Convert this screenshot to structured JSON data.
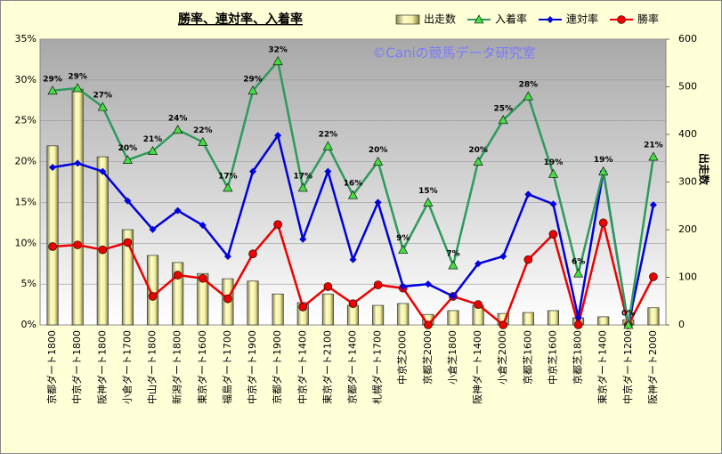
{
  "chart_data": {
    "type": "combo",
    "title": "勝率、連対率、入着率",
    "annotations": [
      "©Caniの競馬データ研究室"
    ],
    "y2label": "出走数",
    "categories": [
      "京都ダート1800",
      "中京ダート1800",
      "阪神ダート1800",
      "小倉ダート1700",
      "中山ダート1800",
      "新潟ダート1800",
      "東京ダート1600",
      "福島ダート1700",
      "中京ダート1900",
      "京都ダート1900",
      "中京ダート1400",
      "東京ダート2100",
      "京都ダート1400",
      "札幌ダート1700",
      "中京芝2000",
      "京都芝2000",
      "小倉芝1800",
      "阪神ダート1400",
      "小倉芝2000",
      "京都芝1600",
      "中京芝1600",
      "京都芝1800",
      "東京ダート1400",
      "中京ダート1200",
      "阪神ダート2000"
    ],
    "ylim": [
      0,
      35
    ],
    "yticks": [
      {
        "value": 0,
        "label": "0%"
      },
      {
        "value": 5,
        "label": "5%"
      },
      {
        "value": 10,
        "label": "10%"
      },
      {
        "value": 15,
        "label": "15%"
      },
      {
        "value": 20,
        "label": "20%"
      },
      {
        "value": 25,
        "label": "25%"
      },
      {
        "value": 30,
        "label": "30%"
      },
      {
        "value": 35,
        "label": "35%"
      }
    ],
    "y2lim": [
      0,
      600
    ],
    "y2ticks": [
      0,
      100,
      200,
      300,
      400,
      500,
      600
    ],
    "grid": true,
    "legend": "top",
    "series": [
      {
        "name": "出走数",
        "type": "bar",
        "axis": "y2",
        "color": "#ffffc8",
        "values": [
          376,
          495,
          353,
          200,
          146,
          131,
          108,
          97,
          92,
          65,
          47,
          65,
          41,
          41,
          45,
          22,
          30,
          41,
          24,
          26,
          30,
          15,
          17,
          11,
          36
        ]
      },
      {
        "name": "入着率",
        "type": "line",
        "marker": "triangle",
        "color": "#2e9a5a",
        "values": [
          28.7,
          29.0,
          26.7,
          20.2,
          21.3,
          23.9,
          22.4,
          16.8,
          28.7,
          32.3,
          16.8,
          21.9,
          15.9,
          20.0,
          9.2,
          15.0,
          7.3,
          20.0,
          25.1,
          28.0,
          18.5,
          6.3,
          18.8,
          0,
          20.6
        ],
        "value_labels": [
          "29%",
          "29%",
          "27%",
          "20%",
          "21%",
          "24%",
          "22%",
          "17%",
          "29%",
          "32%",
          "17%",
          "22%",
          "16%",
          "20%",
          "9%",
          "15%",
          "7%",
          "20%",
          "25%",
          "28%",
          "19%",
          "6%",
          "19%",
          "0%",
          "21%"
        ]
      },
      {
        "name": "連対率",
        "type": "line",
        "marker": "diamond",
        "color": "#0000dd",
        "values": [
          19.3,
          19.8,
          18.8,
          15.2,
          11.7,
          14.0,
          12.2,
          8.4,
          18.8,
          23.2,
          10.5,
          18.8,
          8.0,
          15.0,
          4.7,
          5.0,
          3.5,
          7.5,
          8.4,
          16.0,
          14.8,
          0.9,
          18.8,
          0,
          14.7
        ]
      },
      {
        "name": "勝率",
        "type": "line",
        "marker": "circle",
        "color": "#ee0000",
        "values": [
          9.6,
          9.8,
          9.2,
          10.1,
          3.5,
          6.1,
          5.7,
          3.2,
          8.7,
          12.3,
          2.2,
          4.7,
          2.6,
          4.9,
          4.5,
          0,
          3.5,
          2.5,
          0,
          8.0,
          11.1,
          0,
          12.5,
          0,
          5.9
        ]
      }
    ]
  }
}
